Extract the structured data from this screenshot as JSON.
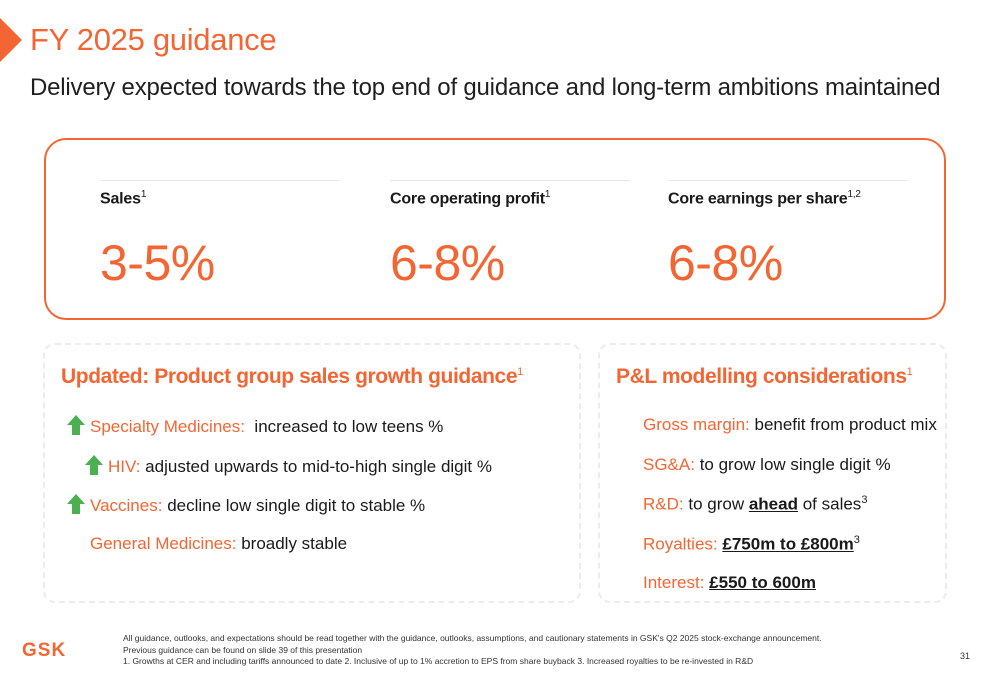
{
  "title": "FY 2025 guidance",
  "subtitle": "Delivery expected towards the top end of guidance and long-term ambitions maintained",
  "metrics": [
    {
      "label": "Sales",
      "sup": "1",
      "value": "3-5%"
    },
    {
      "label": "Core operating profit",
      "sup": "1",
      "value": "6-8%"
    },
    {
      "label": "Core earnings per share",
      "sup": "1,2",
      "value": "6-8%"
    }
  ],
  "product_panel": {
    "title": "Updated: Product group sales growth guidance",
    "title_sup": "1",
    "rows": [
      {
        "name": "Specialty Medicines:",
        "text": "increased to low teens %",
        "arrow": "up-arrow-icon"
      },
      {
        "name": "HIV:",
        "text": "adjusted upwards to mid-to-high single digit %",
        "arrow": "up-arrow-icon"
      },
      {
        "name": "Vaccines:",
        "text": "decline low single digit to stable %",
        "arrow": "up-arrow-icon"
      },
      {
        "name": "General Medicines:",
        "text": "broadly stable"
      }
    ]
  },
  "pl_panel": {
    "title": "P&L modelling considerations",
    "title_sup": "1",
    "rows": [
      {
        "name": "Gross margin:",
        "text": "benefit from product mix"
      },
      {
        "name": "SG&A:",
        "text": "to grow low single digit %"
      },
      {
        "name": "R&D:",
        "pre": "to grow",
        "em": "ahead",
        "post": "of sales",
        "sup": "3"
      },
      {
        "name": "Royalties:",
        "em": "£750m to £800m",
        "sup": "3"
      },
      {
        "name": "Interest:",
        "em": "£550 to 600m"
      }
    ]
  },
  "logo": "GSK",
  "footnotes": [
    "All guidance, outlooks, and expectations should be read together with the guidance, outlooks, assumptions, and cautionary statements in GSK's Q2 2025 stock-exchange announcement.",
    "Previous guidance can be found on slide 39 of this presentation",
    "1. Growths at CER and including tariffs announced to date  2. Inclusive of up to 1% accretion to EPS from share buyback    3. Increased royalties to be re-invested in R&D"
  ],
  "page_number": "31",
  "colors": {
    "accent": "#f36633",
    "up_arrow": "#4caf50"
  }
}
